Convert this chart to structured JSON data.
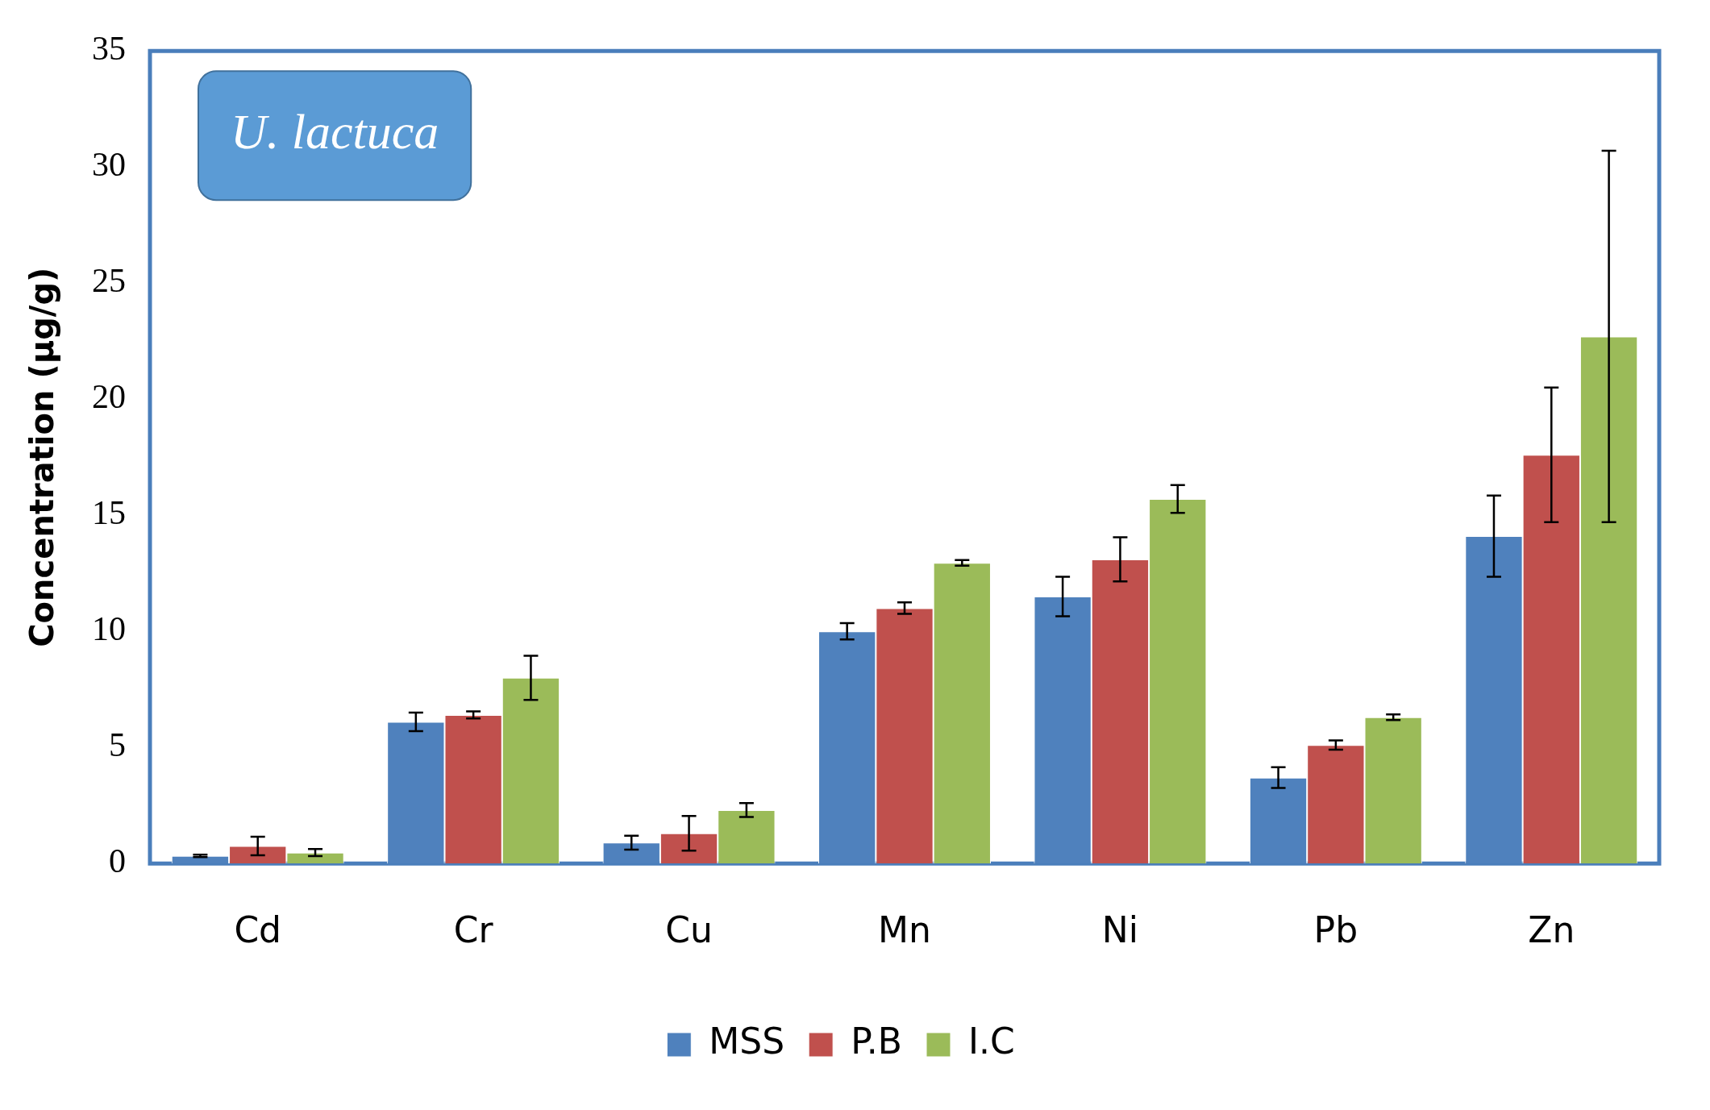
{
  "chart_data": {
    "type": "bar",
    "ylabel": "Concentration (µg/g)",
    "annotations": [
      "U. lactuca"
    ],
    "categories": [
      "Cd",
      "Cr",
      "Cu",
      "Mn",
      "Ni",
      "Pb",
      "Zn"
    ],
    "series": [
      {
        "name": "MSS",
        "color": "#4f81bd",
        "values": [
          0.33,
          6.1,
          0.9,
          10,
          11.5,
          3.7,
          14.1
        ],
        "errors": [
          0.05,
          0.4,
          0.3,
          0.35,
          0.85,
          0.45,
          1.75
        ]
      },
      {
        "name": "P.B",
        "color": "#c0504d",
        "values": [
          0.75,
          6.4,
          1.3,
          11,
          13.1,
          5.1,
          17.6
        ],
        "errors": [
          0.4,
          0.15,
          0.75,
          0.25,
          0.95,
          0.2,
          2.9
        ]
      },
      {
        "name": "I.C",
        "color": "#9bbb59",
        "values": [
          0.47,
          8,
          2.3,
          12.95,
          15.7,
          6.3,
          22.7
        ],
        "errors": [
          0.15,
          0.95,
          0.3,
          0.12,
          0.6,
          0.12,
          8
        ]
      }
    ],
    "ylim": [
      0,
      35
    ],
    "yticks": [
      0,
      5,
      10,
      15,
      20,
      25,
      30,
      35
    ],
    "grid": false,
    "legend": "bottom"
  }
}
